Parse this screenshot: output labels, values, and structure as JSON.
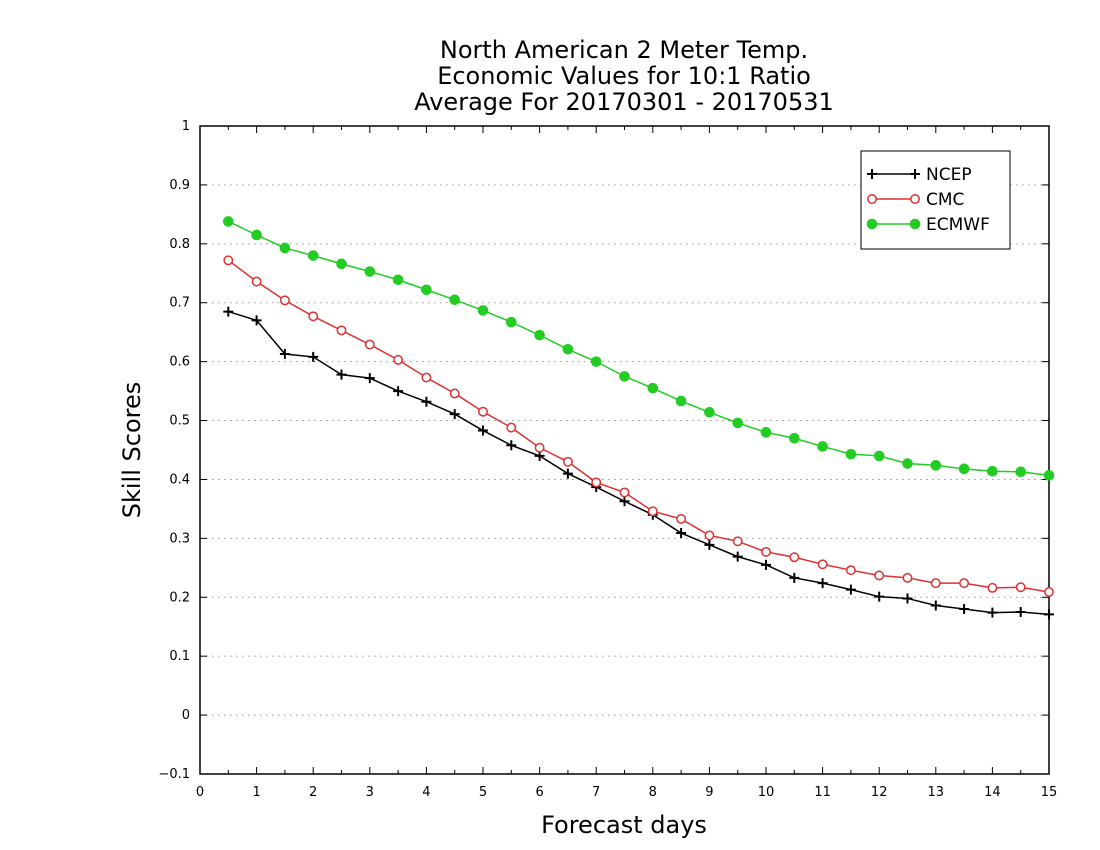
{
  "chart_data": {
    "type": "line",
    "title_lines": [
      "North American 2 Meter Temp.",
      "Economic Values for 10:1 Ratio",
      "Average For 20170301 - 20170531"
    ],
    "xlabel": "Forecast days",
    "ylabel": "Skill Scores",
    "xlim": [
      0,
      15
    ],
    "ylim": [
      -0.1,
      1
    ],
    "x_ticks": [
      0,
      1,
      2,
      3,
      4,
      5,
      6,
      7,
      8,
      9,
      10,
      11,
      12,
      13,
      14,
      15
    ],
    "y_ticks": [
      -0.1,
      0,
      0.1,
      0.2,
      0.3,
      0.4,
      0.5,
      0.6,
      0.7,
      0.8,
      0.9,
      1
    ],
    "y_tick_labels": [
      "−0.1",
      "0",
      "0.1",
      "0.2",
      "0.3",
      "0.4",
      "0.5",
      "0.6",
      "0.7",
      "0.8",
      "0.9",
      "1"
    ],
    "grid": "horizontal-dotted",
    "legend_position": "top-right",
    "x": [
      0.5,
      1,
      1.5,
      2,
      2.5,
      3,
      3.5,
      4,
      4.5,
      5,
      5.5,
      6,
      6.5,
      7,
      7.5,
      8,
      8.5,
      9,
      9.5,
      10,
      10.5,
      11,
      11.5,
      12,
      12.5,
      13,
      13.5,
      14,
      14.5,
      15
    ],
    "series": [
      {
        "name": "NCEP",
        "color": "#000000",
        "marker": "plus",
        "values": [
          0.685,
          0.67,
          0.613,
          0.608,
          0.578,
          0.572,
          0.55,
          0.532,
          0.511,
          0.483,
          0.458,
          0.44,
          0.41,
          0.387,
          0.363,
          0.34,
          0.309,
          0.289,
          0.269,
          0.255,
          0.233,
          0.224,
          0.213,
          0.201,
          0.198,
          0.186,
          0.18,
          0.174,
          0.175,
          0.171
        ]
      },
      {
        "name": "CMC",
        "color": "#e03030",
        "marker": "open-circle",
        "values": [
          0.772,
          0.736,
          0.704,
          0.677,
          0.653,
          0.629,
          0.603,
          0.573,
          0.546,
          0.515,
          0.488,
          0.454,
          0.43,
          0.395,
          0.378,
          0.346,
          0.333,
          0.305,
          0.295,
          0.277,
          0.268,
          0.256,
          0.246,
          0.237,
          0.233,
          0.224,
          0.224,
          0.216,
          0.217,
          0.209
        ]
      },
      {
        "name": "ECMWF",
        "color": "#22cc22",
        "marker": "filled-circle",
        "values": [
          0.838,
          0.815,
          0.793,
          0.78,
          0.766,
          0.753,
          0.739,
          0.722,
          0.705,
          0.687,
          0.667,
          0.645,
          0.621,
          0.6,
          0.575,
          0.555,
          0.533,
          0.514,
          0.496,
          0.48,
          0.47,
          0.456,
          0.443,
          0.44,
          0.427,
          0.424,
          0.418,
          0.414,
          0.413,
          0.407
        ]
      }
    ]
  }
}
